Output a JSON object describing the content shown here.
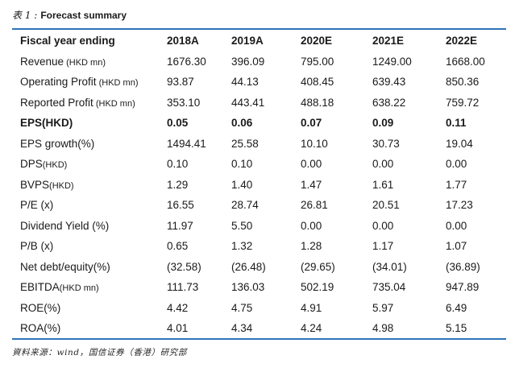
{
  "header": {
    "title_zh": "表 1 :",
    "title_en": "Forecast summary"
  },
  "table": {
    "columns": [
      "Fiscal year ending",
      "2018A",
      "2019A",
      "2020E",
      "2021E",
      "2022E"
    ],
    "rows": [
      {
        "label": "Revenue",
        "unit": " (HKD mn)",
        "bold": false,
        "values": [
          "1676.30",
          "396.09",
          "795.00",
          "1249.00",
          "1668.00"
        ]
      },
      {
        "label": "Operating Profit",
        "unit": " (HKD mn)",
        "bold": false,
        "values": [
          "93.87",
          "44.13",
          "408.45",
          "639.43",
          "850.36"
        ]
      },
      {
        "label": "Reported Profit",
        "unit": " (HKD mn)",
        "bold": false,
        "values": [
          "353.10",
          "443.41",
          "488.18",
          "638.22",
          "759.72"
        ]
      },
      {
        "label": "EPS(HKD)",
        "unit": "",
        "bold": true,
        "values": [
          "0.05",
          "0.06",
          "0.07",
          "0.09",
          "0.11"
        ]
      },
      {
        "label": "EPS growth(%)",
        "unit": "",
        "bold": false,
        "values": [
          "1494.41",
          "25.58",
          "10.10",
          "30.73",
          "19.04"
        ]
      },
      {
        "label": "DPS",
        "unit": "(HKD)",
        "bold": false,
        "values": [
          "0.10",
          "0.10",
          "0.00",
          "0.00",
          "0.00"
        ]
      },
      {
        "label": "BVPS",
        "unit": "(HKD)",
        "bold": false,
        "values": [
          "1.29",
          "1.40",
          "1.47",
          "1.61",
          "1.77"
        ]
      },
      {
        "label": "P/E (x)",
        "unit": "",
        "bold": false,
        "values": [
          "16.55",
          "28.74",
          "26.81",
          "20.51",
          "17.23"
        ]
      },
      {
        "label": "Dividend Yield (%)",
        "unit": "",
        "bold": false,
        "values": [
          "11.97",
          "5.50",
          "0.00",
          "0.00",
          "0.00"
        ]
      },
      {
        "label": "P/B (x)",
        "unit": "",
        "bold": false,
        "values": [
          "0.65",
          "1.32",
          "1.28",
          "1.17",
          "1.07"
        ]
      },
      {
        "label": "Net debt/equity(%)",
        "unit": "",
        "bold": false,
        "values": [
          "(32.58)",
          "(26.48)",
          "(29.65)",
          "(34.01)",
          "(36.89)"
        ]
      },
      {
        "label": "EBITDA",
        "unit": "(HKD mn)",
        "bold": false,
        "values": [
          "111.73",
          "136.03",
          "502.19",
          "735.04",
          "947.89"
        ]
      },
      {
        "label": "ROE(%)",
        "unit": "",
        "bold": false,
        "values": [
          "4.42",
          "4.75",
          "4.91",
          "5.97",
          "6.49"
        ]
      },
      {
        "label": "ROA(%)",
        "unit": "",
        "bold": false,
        "values": [
          "4.01",
          "4.34",
          "4.24",
          "4.98",
          "5.15"
        ]
      }
    ]
  },
  "footer": {
    "source": "資料来源：wind，国信证券（香港）研究部"
  },
  "colors": {
    "rule_blue": "#2E75B6",
    "text": "#1A1A1A"
  }
}
